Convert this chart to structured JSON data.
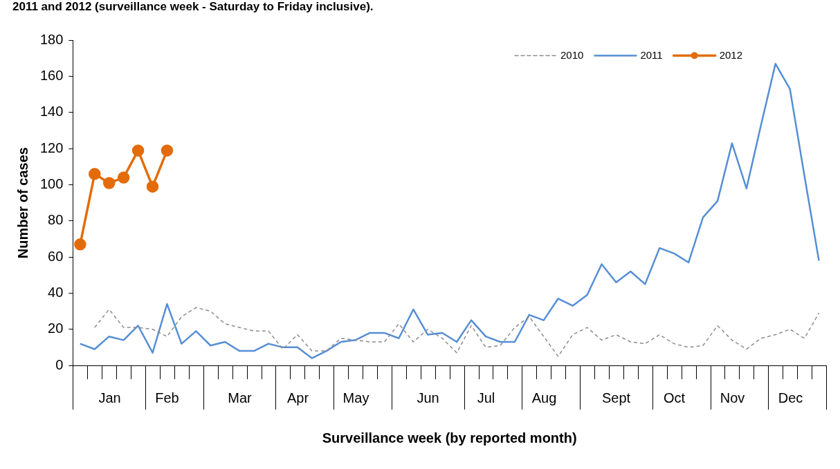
{
  "chart_data": {
    "type": "line",
    "title": "2011 and 2012 (surveillance week - Saturday to Friday inclusive).",
    "xlabel": "Surveillance week (by reported month)",
    "ylabel": "Number of cases",
    "categories": [
      null,
      null,
      "Jan",
      null,
      null,
      null,
      "Feb",
      null,
      null,
      null,
      null,
      "Mar",
      null,
      null,
      null,
      "Apr",
      null,
      null,
      null,
      "May",
      null,
      null,
      null,
      null,
      "Jun",
      null,
      null,
      null,
      "Jul",
      null,
      null,
      null,
      "Aug",
      null,
      null,
      null,
      null,
      "Sept",
      null,
      null,
      null,
      "Oct",
      null,
      null,
      null,
      "Nov",
      null,
      null,
      null,
      "Dec",
      null,
      null
    ],
    "series": [
      {
        "name": "2010",
        "color": "#8c8c8c",
        "line_style": "dashed",
        "marker": "none",
        "values": [
          null,
          21,
          31,
          21,
          21,
          20,
          16,
          27,
          32,
          30,
          23,
          21,
          19,
          19,
          9,
          17,
          8,
          8,
          15,
          14,
          13,
          13,
          23,
          13,
          20,
          15,
          7,
          22,
          10,
          11,
          21,
          27,
          16,
          5,
          17,
          21,
          14,
          17,
          13,
          12,
          17,
          12,
          10,
          11,
          22,
          14,
          9,
          15,
          17,
          20,
          15,
          29
        ]
      },
      {
        "name": "2011",
        "color": "#558ed5",
        "line_style": "solid",
        "marker": "none",
        "values": [
          12,
          9,
          16,
          14,
          22,
          7,
          34,
          12,
          19,
          11,
          13,
          8,
          8,
          12,
          10,
          10,
          4,
          8,
          13,
          14,
          18,
          18,
          15,
          31,
          17,
          18,
          13,
          25,
          16,
          13,
          13,
          28,
          25,
          37,
          33,
          39,
          56,
          46,
          52,
          45,
          65,
          62,
          57,
          82,
          91,
          123,
          98,
          133,
          167,
          153,
          105,
          58
        ]
      },
      {
        "name": "2012",
        "color": "#e36c09",
        "line_style": "solid",
        "marker": "circle",
        "values": [
          67,
          106,
          101,
          104,
          119,
          99,
          119,
          null,
          null,
          null,
          null,
          null,
          null,
          null,
          null,
          null,
          null,
          null,
          null,
          null,
          null,
          null,
          null,
          null,
          null,
          null,
          null,
          null,
          null,
          null,
          null,
          null,
          null,
          null,
          null,
          null,
          null,
          null,
          null,
          null,
          null,
          null,
          null,
          null,
          null,
          null,
          null,
          null,
          null,
          null,
          null,
          null
        ]
      }
    ],
    "ylim": [
      0,
      180
    ],
    "yticks": [
      0,
      20,
      40,
      60,
      80,
      100,
      120,
      140,
      160,
      180
    ],
    "grid": false,
    "legend": "top right"
  }
}
